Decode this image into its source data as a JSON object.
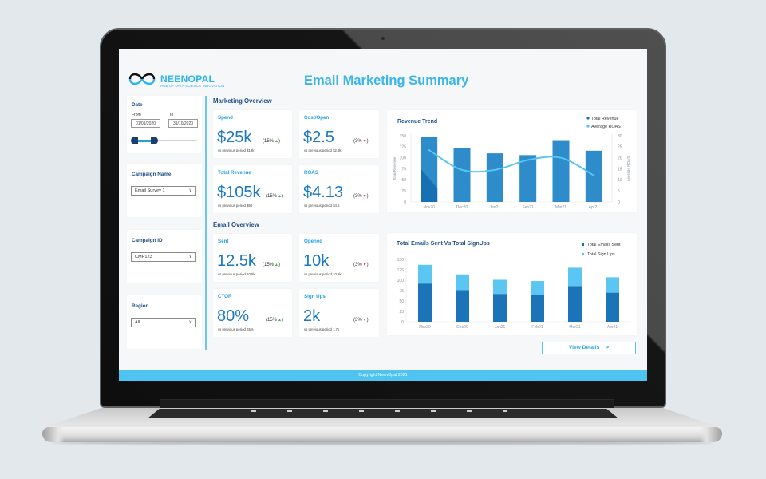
{
  "app": {
    "logo_name": "NEENOPAL",
    "logo_tagline": "HUB OF DATA SCIENCE INNOVATION",
    "title": "Email Marketing Summary",
    "footer": "Copyright NeenOpal 2021"
  },
  "filters": {
    "date": {
      "label": "Date",
      "from_label": "From",
      "to_label": "To",
      "from": "01/01/2020",
      "to": "31/10/2020"
    },
    "campaign_name": {
      "label": "Campaign Name",
      "value": "Email Survey 1",
      "icon": "chevron-down-icon"
    },
    "campaign_id": {
      "label": "Campaign ID",
      "value": "CMP123",
      "icon": "chevron-down-icon"
    },
    "region": {
      "label": "Region",
      "value": "All",
      "icon": "chevron-down-icon"
    },
    "chevron_glyph": "∨"
  },
  "marketing_overview": {
    "title": "Marketing Overview",
    "kpis": [
      {
        "label": "Spend",
        "value": "$25k",
        "delta": "15%",
        "direction": "up",
        "arrow": "▲",
        "sub": "vs previous period $19k"
      },
      {
        "label": "Cost/Open",
        "value": "$2.5",
        "delta": "3%",
        "direction": "down",
        "arrow": "▼",
        "sub": "vs previous period $2.8k"
      },
      {
        "label": "Total Revenue",
        "value": "$105k",
        "delta": "15%",
        "direction": "up",
        "arrow": "▲",
        "sub": "vs previous period $90"
      },
      {
        "label": "ROAS",
        "value": "$4.13",
        "delta": "3%",
        "direction": "down",
        "arrow": "▼",
        "sub": "vs previous period $4.5"
      }
    ]
  },
  "email_overview": {
    "title": "Email Overview",
    "kpis": [
      {
        "label": "Sent",
        "value": "12.5k",
        "delta": "15%",
        "direction": "up",
        "arrow": "▲",
        "sub": "vs previous period 10.5k"
      },
      {
        "label": "Opened",
        "value": "10k",
        "delta": "3%",
        "direction": "down",
        "arrow": "▼",
        "sub": "vs previous period 10.5k"
      },
      {
        "label": "CTOR",
        "value": "80%",
        "delta": "15%",
        "direction": "up",
        "arrow": "▲",
        "sub": "vs previous period 65%"
      },
      {
        "label": "Sign Ups",
        "value": "2k",
        "delta": "3%",
        "direction": "down",
        "arrow": "▼",
        "sub": "vs previous period 1.7k"
      }
    ]
  },
  "view_details": {
    "label": "View Details",
    "chevron": ">"
  },
  "colors": {
    "accent": "#3ab5ea",
    "navy": "#1f4f86",
    "kpi_value": "#1b78c2",
    "up": "#3cb54a",
    "down": "#e0262b",
    "footer": "#4fc3f2"
  },
  "chart_data": [
    {
      "type": "bar+line",
      "title": "Revenue Trend",
      "categories": [
        "Nov20",
        "Dec20",
        "Jan21",
        "Feb21",
        "Mar21",
        "Apr21"
      ],
      "series": [
        {
          "name": "Total Revenue",
          "type": "bar",
          "axis": "left",
          "color": "#2e8ccb",
          "values": [
            148,
            122,
            110,
            106,
            140,
            116
          ]
        },
        {
          "name": "Average ROAS",
          "type": "line",
          "axis": "right",
          "color": "#56c5ef",
          "values": [
            23.5,
            14.5,
            14.5,
            19,
            20,
            12
          ]
        }
      ],
      "xlabel": "",
      "ylabel": "Total Revenue",
      "y2label": "Average ROAS",
      "ylim": [
        0,
        150
      ],
      "y2lim": [
        0,
        30
      ],
      "yticks": [
        0,
        25,
        50,
        75,
        100,
        125,
        150
      ],
      "y2ticks": [
        0,
        5,
        10,
        15,
        20,
        25,
        30
      ],
      "legend": [
        {
          "label": "Total Revenue",
          "color": "#1b6fb0"
        },
        {
          "label": "Average ROAS",
          "color": "#49c2ef"
        }
      ],
      "legend_position": "top-right",
      "grid": false
    },
    {
      "type": "stacked-bar",
      "title": "Total Emails Sent Vs Total SignUps",
      "categories": [
        "Nov20",
        "Dec20",
        "Jan21",
        "Feb21",
        "Mar21",
        "Apr21"
      ],
      "series": [
        {
          "name": "Total Emails Sent",
          "color": "#1a74b7",
          "values": [
            92,
            76,
            67,
            64,
            86,
            70
          ]
        },
        {
          "name": "Total Sign Ups",
          "color": "#5bc6f1",
          "values": [
            45,
            38,
            34,
            34,
            44,
            37
          ]
        }
      ],
      "xlabel": "",
      "ylabel": "",
      "ylim": [
        0,
        150
      ],
      "yticks": [
        0,
        25,
        50,
        75,
        100,
        125,
        150
      ],
      "legend": [
        {
          "label": "Total Emails Sent",
          "color": "#1a6aae"
        },
        {
          "label": "Total Sign Ups",
          "color": "#4fc3f2"
        }
      ],
      "legend_position": "top-right",
      "grid": false
    }
  ]
}
